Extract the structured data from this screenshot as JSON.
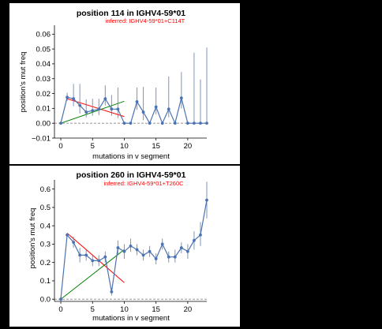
{
  "chart_data": [
    {
      "type": "scatter",
      "title": "position 114 in IGHV4-59*01",
      "subtitle": "inferred: IGHV4-59*01+C114T",
      "xlabel": "mutations in v segment",
      "ylabel": "position's mut freq",
      "xlim": [
        -1,
        23
      ],
      "ylim": [
        -0.01,
        0.066
      ],
      "xticks": [
        0,
        5,
        10,
        15,
        20
      ],
      "yticks": [
        -0.01,
        0.0,
        0.01,
        0.02,
        0.03,
        0.04,
        0.05,
        0.06
      ],
      "ytick_labels": [
        "−0.01",
        "0.00",
        "0.01",
        "0.02",
        "0.03",
        "0.04",
        "0.05",
        "0.06"
      ],
      "points": {
        "x": [
          0,
          1,
          2,
          3,
          4,
          5,
          6,
          7,
          8,
          9,
          10,
          11,
          12,
          13,
          14,
          15,
          16,
          17,
          18,
          19,
          20,
          21,
          22,
          23
        ],
        "y": [
          0.0,
          0.0175,
          0.0165,
          0.012,
          0.0075,
          0.0085,
          0.0095,
          0.0165,
          0.0095,
          0.0095,
          0.0,
          0.0,
          0.0145,
          0.0075,
          0.0,
          0.011,
          0.0,
          0.0095,
          0.0,
          0.017,
          0.0,
          0.0,
          0.0,
          0.0
        ],
        "err_lo": [
          0.0,
          0.015,
          0.0115,
          0.0065,
          0.004,
          0.005,
          0.0055,
          0.012,
          0.005,
          0.0035,
          0.0,
          0.0,
          0.009,
          0.002,
          0.0,
          0.006,
          0.0,
          0.004,
          0.0,
          0.01,
          0.0,
          0.0,
          0.0,
          0.0
        ],
        "err_hi": [
          0.0,
          0.0205,
          0.0265,
          0.0265,
          0.016,
          0.0165,
          0.0165,
          0.0255,
          0.019,
          0.024,
          0.0,
          0.0,
          0.024,
          0.0245,
          0.0,
          0.024,
          0.0,
          0.0315,
          0.0,
          0.0345,
          0.0,
          0.0475,
          0.0295,
          0.051
        ]
      },
      "fit_lines": [
        {
          "color": "#ff0000",
          "x": [
            1,
            10
          ],
          "y": [
            0.0165,
            0.0045
          ]
        },
        {
          "color": "#008000",
          "x": [
            0,
            10
          ],
          "y": [
            0.0,
            0.0148
          ]
        }
      ],
      "baseline": 0.0
    },
    {
      "type": "scatter",
      "title": "position 260 in IGHV4-59*01",
      "subtitle": "inferred: IGHV4-59*01+T260C",
      "xlabel": "mutations in v segment",
      "ylabel": "position's mut freq",
      "xlim": [
        -1,
        23
      ],
      "ylim": [
        -0.012,
        0.65
      ],
      "xticks": [
        0,
        5,
        10,
        15,
        20
      ],
      "yticks": [
        0.0,
        0.1,
        0.2,
        0.3,
        0.4,
        0.5,
        0.6
      ],
      "ytick_labels": [
        "0.0",
        "0.1",
        "0.2",
        "0.3",
        "0.4",
        "0.5",
        "0.6"
      ],
      "points": {
        "x": [
          0,
          1,
          2,
          3,
          4,
          5,
          6,
          7,
          8,
          9,
          10,
          11,
          12,
          13,
          14,
          15,
          16,
          17,
          18,
          19,
          20,
          21,
          22,
          23
        ],
        "y": [
          0.0,
          0.35,
          0.31,
          0.24,
          0.24,
          0.21,
          0.21,
          0.23,
          0.04,
          0.28,
          0.26,
          0.29,
          0.27,
          0.24,
          0.26,
          0.22,
          0.3,
          0.23,
          0.23,
          0.28,
          0.26,
          0.32,
          0.35,
          0.54
        ],
        "err_lo": [
          0.0,
          0.34,
          0.28,
          0.2,
          0.21,
          0.18,
          0.18,
          0.2,
          0.02,
          0.24,
          0.22,
          0.26,
          0.24,
          0.21,
          0.23,
          0.19,
          0.27,
          0.2,
          0.2,
          0.25,
          0.22,
          0.27,
          0.29,
          0.44
        ],
        "err_hi": [
          0.0,
          0.36,
          0.34,
          0.28,
          0.27,
          0.24,
          0.24,
          0.26,
          0.06,
          0.32,
          0.3,
          0.33,
          0.3,
          0.27,
          0.29,
          0.25,
          0.33,
          0.26,
          0.27,
          0.31,
          0.3,
          0.37,
          0.42,
          0.64
        ]
      },
      "fit_lines": [
        {
          "color": "#ff0000",
          "x": [
            1,
            10
          ],
          "y": [
            0.36,
            0.09
          ]
        },
        {
          "color": "#008000",
          "x": [
            0,
            10
          ],
          "y": [
            0.0,
            0.27
          ]
        }
      ],
      "baseline": 0.0
    }
  ],
  "colors": {
    "points": "#4c72b0",
    "baseline": "#888888",
    "background": "#000000",
    "panel": "#ffffff"
  }
}
